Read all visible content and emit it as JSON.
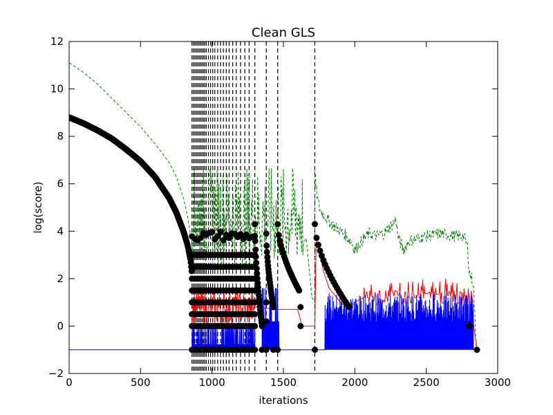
{
  "chart_data": {
    "type": "line",
    "title": "Clean GLS",
    "xlabel": "iterations",
    "ylabel": "log(score)",
    "xlim": [
      0,
      3000
    ],
    "ylim": [
      -2,
      12
    ],
    "xticks": [
      0,
      500,
      1000,
      1500,
      2000,
      2500,
      3000
    ],
    "xtick_labels": [
      "0",
      "500",
      "1000",
      "1500",
      "2000",
      "2500",
      "3000"
    ],
    "yticks": [
      -2,
      0,
      2,
      4,
      6,
      8,
      10,
      12
    ],
    "ytick_labels": [
      "−2",
      "0",
      "2",
      "4",
      "6",
      "8",
      "10",
      "12"
    ],
    "grid": false,
    "legend": "none",
    "vertical_markers": [
      860,
      870,
      880,
      890,
      900,
      910,
      920,
      930,
      940,
      950,
      960,
      975,
      990,
      1005,
      1020,
      1040,
      1060,
      1080,
      1100,
      1120,
      1145,
      1170,
      1200,
      1230,
      1260,
      1300,
      1380,
      1460,
      1720
    ],
    "colors": {
      "current_score": "#0000ff",
      "best_score": "#ff0000",
      "upper_bound": "#008000",
      "markers": "#000000",
      "vertical_lines": "#000000"
    },
    "series": [],
    "dots_curve": {
      "x": [
        0,
        100,
        200,
        300,
        400,
        500,
        600,
        700,
        750,
        800,
        830,
        850,
        860
      ],
      "y": [
        8.8,
        8.55,
        8.25,
        7.9,
        7.45,
        6.95,
        6.3,
        5.4,
        4.8,
        4.0,
        3.4,
        2.8,
        2.2
      ]
    },
    "green_curve": {
      "x": [
        0,
        100,
        200,
        300,
        400,
        500,
        600,
        700,
        750,
        800,
        830,
        860
      ],
      "y": [
        11.1,
        10.7,
        10.2,
        9.6,
        9.0,
        8.4,
        7.7,
        6.9,
        6.3,
        5.4,
        4.6,
        3.5
      ]
    },
    "green_tail": {
      "x": [
        1720,
        1730,
        1750,
        1780,
        1820,
        1860,
        1900,
        1940,
        1980,
        2000,
        2050,
        2100,
        2150,
        2200,
        2250,
        2290,
        2300,
        2340,
        2380,
        2450,
        2500,
        2600,
        2700,
        2760,
        2790,
        2800,
        2830,
        2850
      ],
      "y": [
        6.5,
        5.7,
        5.0,
        4.7,
        4.4,
        4.2,
        4.0,
        3.8,
        3.5,
        3.2,
        3.6,
        3.9,
        3.8,
        3.9,
        4.2,
        4.5,
        3.8,
        3.2,
        3.6,
        3.7,
        3.8,
        3.9,
        3.8,
        3.8,
        3.3,
        2.3,
        1.8,
        -1.0
      ]
    },
    "blue_baseline": -1.0,
    "last_point": [
      2855,
      -1.0
    ]
  }
}
